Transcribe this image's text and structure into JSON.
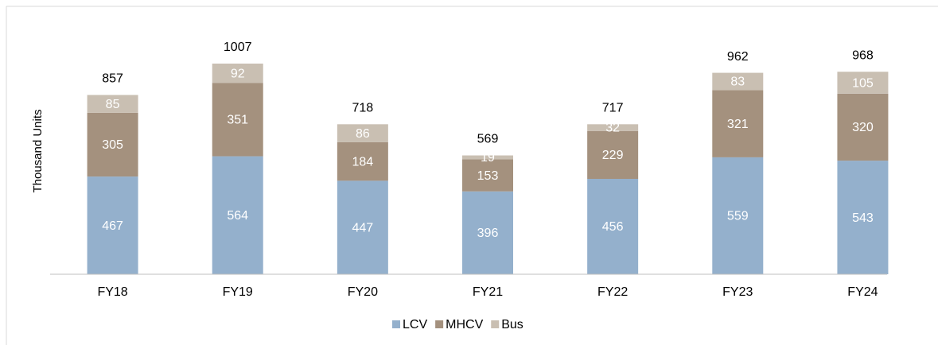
{
  "chart_data": {
    "type": "stacked_bar",
    "ylabel": "Thousand Units",
    "categories": [
      "FY18",
      "FY19",
      "FY20",
      "FY21",
      "FY22",
      "FY23",
      "FY24"
    ],
    "series": [
      {
        "name": "LCV",
        "color": "#94b0cc",
        "values": [
          467,
          564,
          447,
          396,
          456,
          559,
          543
        ]
      },
      {
        "name": "MHCV",
        "color": "#a4917e",
        "values": [
          305,
          351,
          184,
          153,
          229,
          321,
          320
        ]
      },
      {
        "name": "Bus",
        "color": "#c9bfb2",
        "values": [
          85,
          92,
          86,
          19,
          32,
          83,
          105
        ]
      }
    ],
    "totals": [
      857,
      1007,
      718,
      569,
      717,
      962,
      968
    ],
    "legend": "bottom"
  }
}
